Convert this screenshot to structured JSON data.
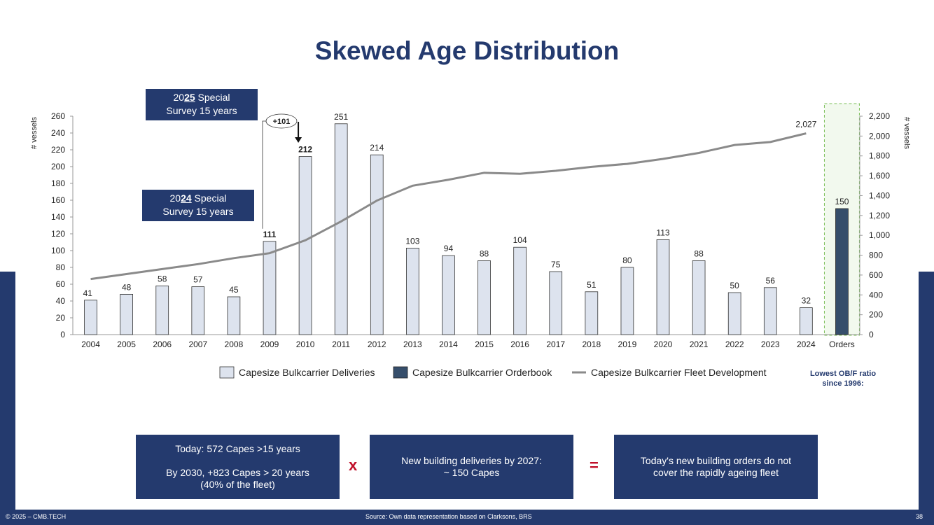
{
  "title": "Skewed Age Distribution",
  "chart_data": {
    "type": "bar",
    "categories": [
      "2004",
      "2005",
      "2006",
      "2007",
      "2008",
      "2009",
      "2010",
      "2011",
      "2012",
      "2013",
      "2014",
      "2015",
      "2016",
      "2017",
      "2018",
      "2019",
      "2020",
      "2021",
      "2022",
      "2023",
      "2024",
      "Orders"
    ],
    "series": [
      {
        "name": "Capesize Bulkcarrier Deliveries",
        "type": "bar",
        "axis": "left",
        "values": [
          41,
          48,
          58,
          57,
          45,
          111,
          212,
          251,
          214,
          103,
          94,
          88,
          104,
          75,
          51,
          80,
          113,
          88,
          50,
          56,
          32,
          null
        ]
      },
      {
        "name": "Capesize Bulkcarrier Orderbook",
        "type": "bar",
        "axis": "left",
        "values": [
          null,
          null,
          null,
          null,
          null,
          null,
          null,
          null,
          null,
          null,
          null,
          null,
          null,
          null,
          null,
          null,
          null,
          null,
          null,
          null,
          null,
          150
        ]
      },
      {
        "name": "Capesize Bulkcarrier Fleet Development",
        "type": "line",
        "axis": "right",
        "values": [
          560,
          610,
          660,
          710,
          770,
          820,
          950,
          1140,
          1350,
          1500,
          1560,
          1630,
          1620,
          1650,
          1690,
          1720,
          1770,
          1830,
          1910,
          1940,
          2027,
          null
        ]
      }
    ],
    "value_labels": [
      "41",
      "48",
      "58",
      "57",
      "45",
      "111",
      "212",
      "251",
      "214",
      "103",
      "94",
      "88",
      "104",
      "75",
      "51",
      "80",
      "113",
      "88",
      "50",
      "56",
      "32",
      "150"
    ],
    "bold_labels": [
      5,
      6
    ],
    "line_end_label": "2,027",
    "y_left": {
      "label": "# vessels",
      "min": 0,
      "max": 260,
      "step": 20,
      "ticks": [
        "0",
        "20",
        "40",
        "60",
        "80",
        "100",
        "120",
        "140",
        "160",
        "180",
        "200",
        "220",
        "240",
        "260"
      ]
    },
    "y_right": {
      "label": "# vessels",
      "min": 0,
      "max": 2200,
      "step": 200,
      "ticks": [
        "0",
        "200",
        "400",
        "600",
        "800",
        "1,000",
        "1,200",
        "1,400",
        "1,600",
        "1,800",
        "2,000",
        "2,200"
      ]
    },
    "annotation": "+101",
    "colors": {
      "deliveries": "#dde3ee",
      "orderbook": "#364e6b",
      "line": "#8a8a8a",
      "navy": "#243a6e",
      "highlight": "#7cbf5a"
    }
  },
  "callouts": {
    "c2025": {
      "pre": "20",
      "underline": "25",
      "post": " Special",
      "line2": "Survey 15 years"
    },
    "c2024": {
      "pre": "20",
      "underline": "24",
      "post": " Special",
      "line2": "Survey 15 years"
    }
  },
  "ratio_note": {
    "line1": "Lowest OB/F ratio",
    "line2": "since 1996:"
  },
  "boxes": {
    "box1": {
      "line1": "Today: 572 Capes >15 years",
      "line2": "By 2030, +823 Capes > 20 years",
      "line3": "(40% of the fleet)"
    },
    "box2": {
      "line1": "New building deliveries by 2027:",
      "line2": "~ 150 Capes"
    },
    "box3": {
      "line1": "Today's new building orders do not",
      "line2": "cover the rapidly ageing fleet"
    }
  },
  "operators": {
    "times": "x",
    "equals": "="
  },
  "footer": {
    "copyright": "© 2025 – CMB.TECH",
    "source": "Source:  Own data representation based on Clarksons, BRS",
    "page": "38"
  }
}
